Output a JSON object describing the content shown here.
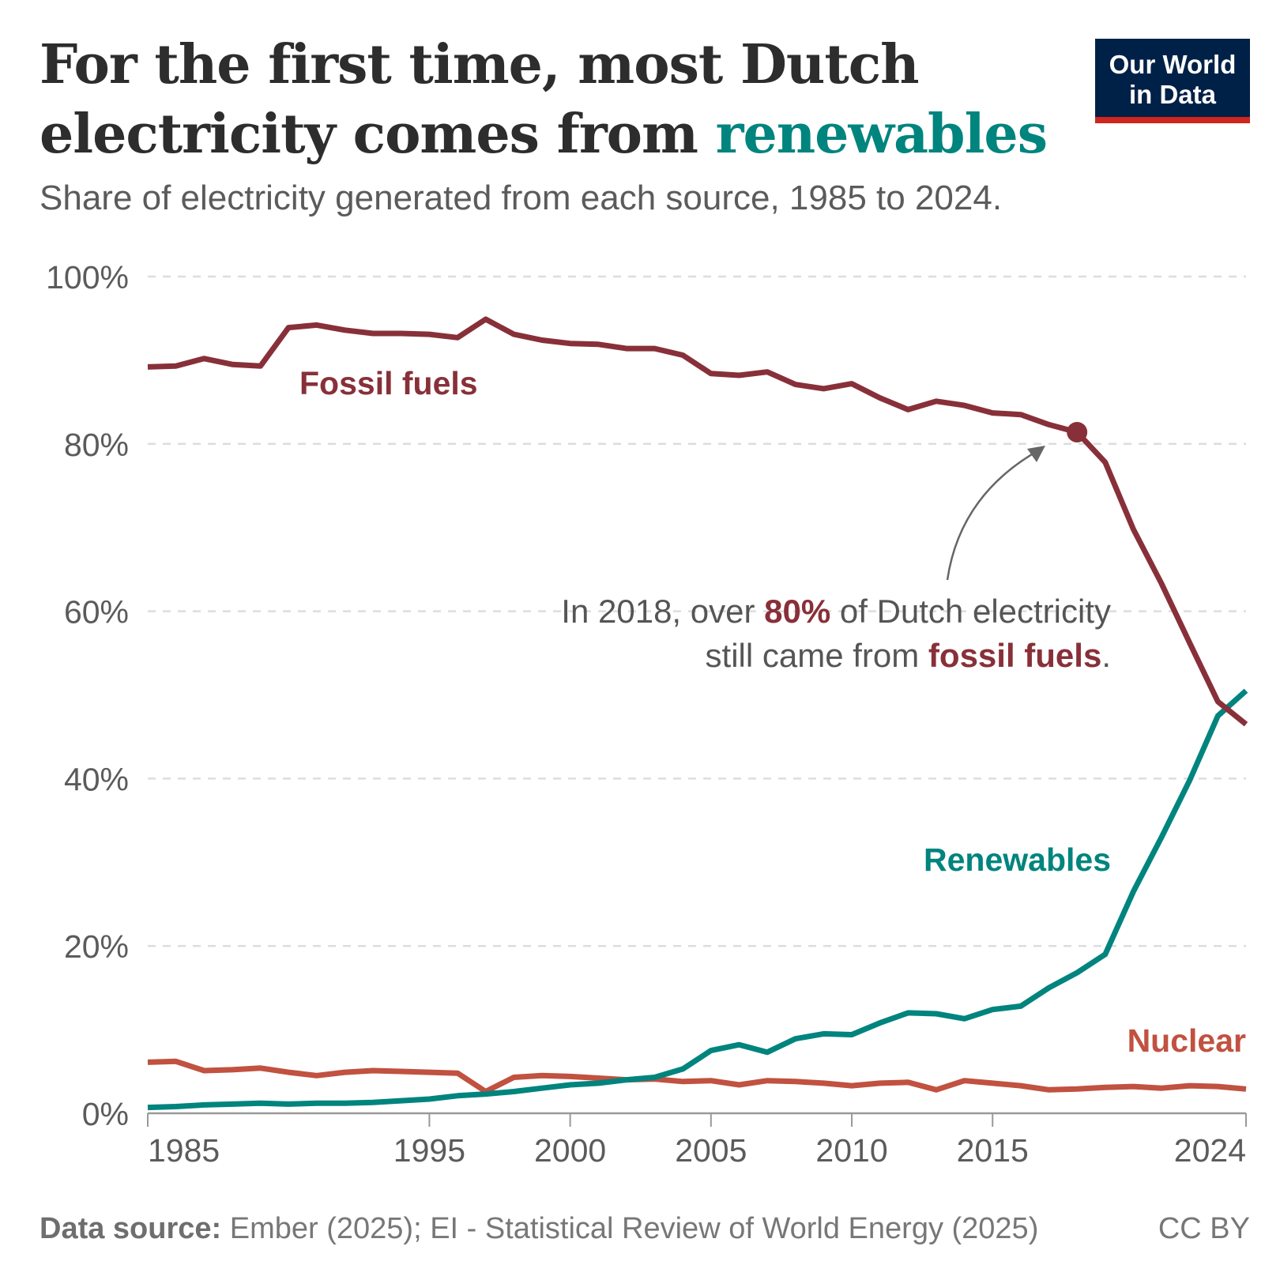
{
  "header": {
    "title_part1": "For the first time, most Dutch",
    "title_part2": "electricity comes from ",
    "title_highlight": "renewables",
    "subtitle": "Share of electricity generated from each source, 1985 to 2024."
  },
  "logo": {
    "line1": "Our World",
    "line2": "in Data"
  },
  "annotation": {
    "part1": "In 2018, over ",
    "highlight1": "80%",
    "part2": " of Dutch electricity",
    "part3": "still came from ",
    "highlight2": "fossil fuels",
    "part4": "."
  },
  "footer": {
    "source_label": "Data source:",
    "source_text": " Ember (2025); EI - Statistical Review of World Energy (2025)",
    "license": "CC BY"
  },
  "colors": {
    "fossil": "#883039",
    "renewables": "#00847e",
    "nuclear": "#c15140",
    "title_highlight": "#00847e",
    "logo_bg": "#002147",
    "logo_bar": "#ce261e"
  },
  "chart_data": {
    "type": "line",
    "title": "For the first time, most Dutch electricity comes from renewables",
    "subtitle": "Share of electricity generated from each source, 1985 to 2024.",
    "xlabel": "",
    "ylabel": "",
    "ylim": [
      0,
      100
    ],
    "xlim": [
      1985,
      2024
    ],
    "grid": "horizontal dashed",
    "legend": "inline labels",
    "yticks": [
      "0%",
      "20%",
      "40%",
      "60%",
      "80%",
      "100%"
    ],
    "xticks": [
      "1985",
      "1995",
      "2000",
      "2005",
      "2010",
      "2015",
      "2024"
    ],
    "x": [
      1985,
      1986,
      1987,
      1988,
      1989,
      1990,
      1991,
      1992,
      1993,
      1994,
      1995,
      1996,
      1997,
      1998,
      1999,
      2000,
      2001,
      2002,
      2003,
      2004,
      2005,
      2006,
      2007,
      2008,
      2009,
      2010,
      2011,
      2012,
      2013,
      2014,
      2015,
      2016,
      2017,
      2018,
      2019,
      2020,
      2021,
      2022,
      2023,
      2024
    ],
    "series": [
      {
        "name": "Fossil fuels",
        "values": [
          89.2,
          89.3,
          90.2,
          89.5,
          89.3,
          93.9,
          94.2,
          93.6,
          93.2,
          93.2,
          93.1,
          92.7,
          94.9,
          93.1,
          92.4,
          92.0,
          91.9,
          91.4,
          91.4,
          90.6,
          88.4,
          88.2,
          88.6,
          87.1,
          86.6,
          87.2,
          85.5,
          84.1,
          85.1,
          84.6,
          83.7,
          83.5,
          82.3,
          81.4,
          77.8,
          69.8,
          63.3,
          56.2,
          49.2,
          46.5
        ]
      },
      {
        "name": "Renewables",
        "values": [
          0.7,
          0.8,
          1.0,
          1.1,
          1.2,
          1.1,
          1.2,
          1.2,
          1.3,
          1.5,
          1.7,
          2.1,
          2.3,
          2.6,
          3.0,
          3.4,
          3.6,
          4.0,
          4.3,
          5.3,
          7.5,
          8.2,
          7.3,
          8.9,
          9.5,
          9.4,
          10.8,
          12.0,
          11.9,
          11.3,
          12.4,
          12.8,
          15.0,
          16.8,
          19.0,
          26.5,
          33.0,
          39.8,
          47.5,
          50.5
        ]
      },
      {
        "name": "Nuclear",
        "values": [
          6.1,
          6.2,
          5.1,
          5.2,
          5.4,
          4.9,
          4.5,
          4.9,
          5.1,
          5.0,
          4.9,
          4.8,
          2.6,
          4.3,
          4.5,
          4.4,
          4.2,
          4.0,
          4.1,
          3.8,
          3.9,
          3.4,
          3.9,
          3.8,
          3.6,
          3.3,
          3.6,
          3.7,
          2.8,
          3.9,
          3.6,
          3.3,
          2.8,
          2.9,
          3.1,
          3.2,
          3.0,
          3.3,
          3.2,
          2.9
        ]
      }
    ],
    "highlight_point": {
      "series": "Fossil fuels",
      "x": 2018
    }
  }
}
